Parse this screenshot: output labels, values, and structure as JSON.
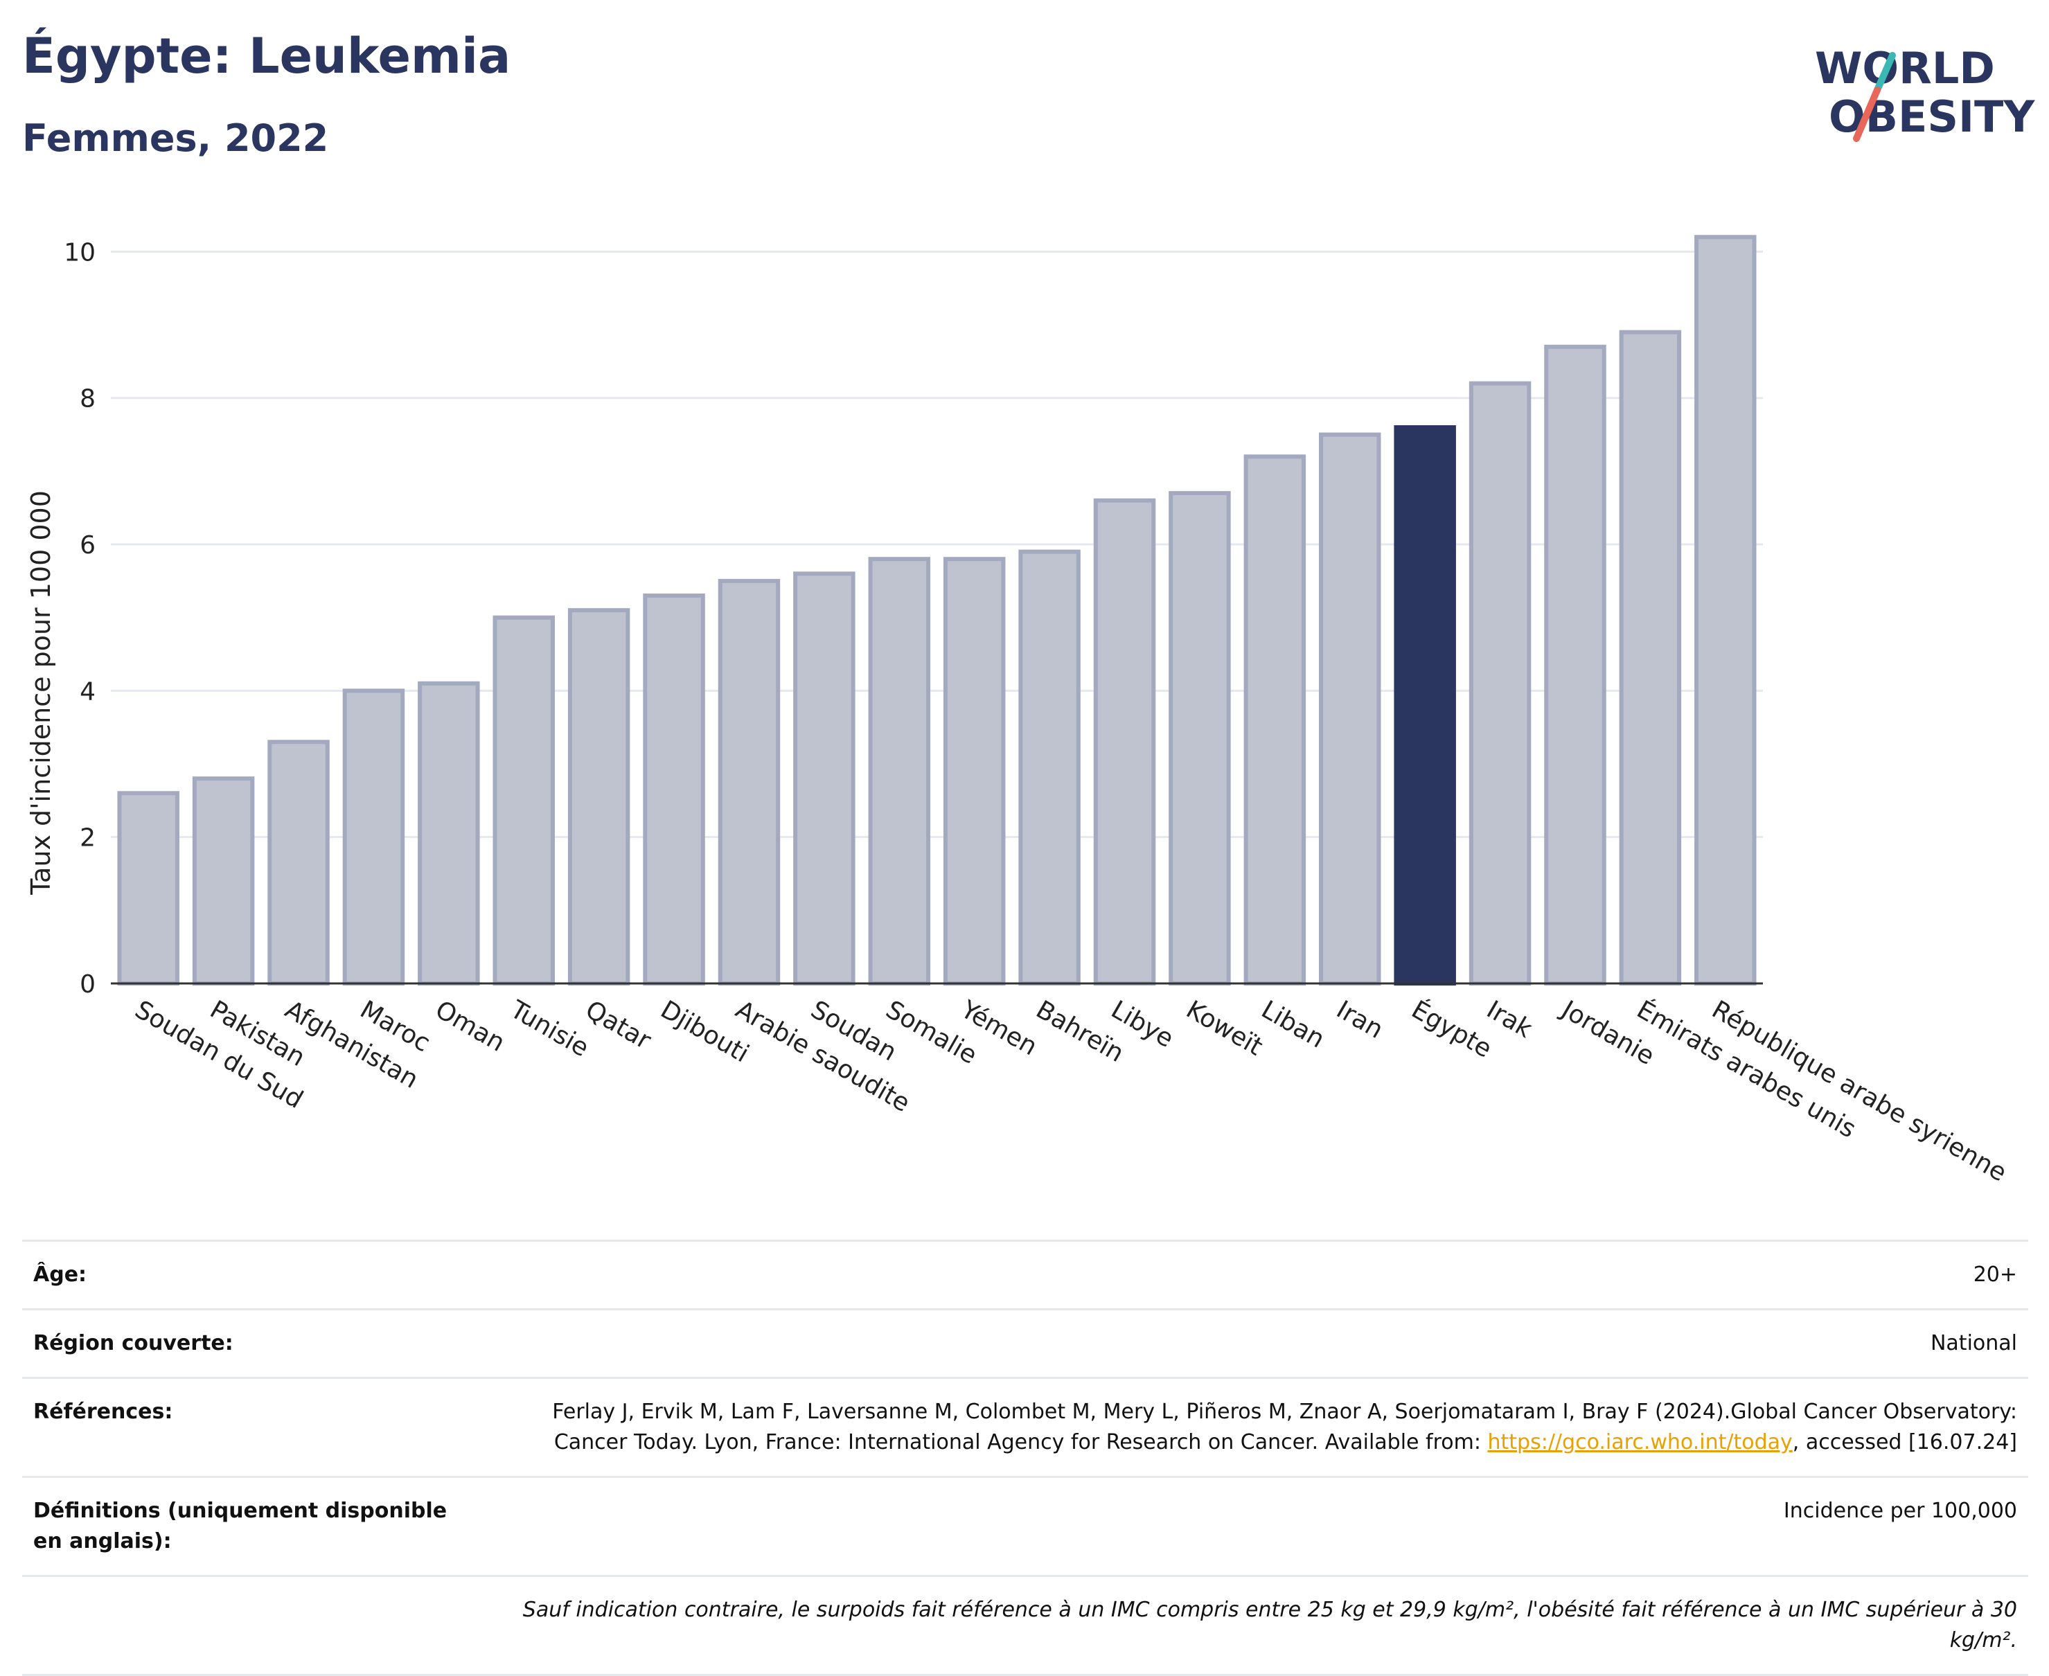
{
  "header": {
    "title": "Égypte: Leukemia",
    "subtitle": "Femmes, 2022"
  },
  "logo": {
    "line1": "WORLD",
    "line2": "OBESITY",
    "accent_teal": "#3bb8b3",
    "accent_red": "#e8675a",
    "text_color": "#2a3560"
  },
  "chart_data": {
    "type": "bar",
    "ylabel": "Taux d'incidence pour 100 000",
    "ylim": [
      0,
      10.6
    ],
    "yticks": [
      0,
      2,
      4,
      6,
      8,
      10
    ],
    "grid": true,
    "highlight": "Égypte",
    "colors": {
      "bar": "#bfc3d0",
      "bar_border": "#a3a9bf",
      "highlight": "#2a3560"
    },
    "categories": [
      "Soudan du Sud",
      "Pakistan",
      "Afghanistan",
      "Maroc",
      "Oman",
      "Tunisie",
      "Qatar",
      "Djibouti",
      "Arabie saoudite",
      "Soudan",
      "Somalie",
      "Yémen",
      "Bahreïn",
      "Libye",
      "Koweït",
      "Liban",
      "Iran",
      "Égypte",
      "Irak",
      "Jordanie",
      "Émirats arabes unis",
      "République arabe syrienne"
    ],
    "values": [
      2.6,
      2.8,
      3.3,
      4.0,
      4.1,
      5.0,
      5.1,
      5.3,
      5.5,
      5.6,
      5.8,
      5.8,
      5.9,
      6.6,
      6.7,
      7.2,
      7.5,
      7.6,
      8.2,
      8.7,
      8.9,
      10.2
    ]
  },
  "meta": {
    "age_label": "Âge:",
    "age_value": "20+",
    "region_label": "Région couverte:",
    "region_value": "National",
    "refs_label": "Références:",
    "refs_text": "Ferlay J, Ervik M, Lam F, Laversanne M, Colombet M, Mery L, Piñeros M, Znaor A, Soerjomataram I, Bray F (2024).Global Cancer Observatory: Cancer Today. Lyon, France: International Agency for Research on Cancer. Available from: ",
    "refs_link": "https://gco.iarc.who.int/today",
    "refs_tail": ", accessed [16.07.24]",
    "defs_label": "Définitions (uniquement disponible en anglais):",
    "defs_value": "Incidence per 100,000",
    "note": "Sauf indication contraire, le surpoids fait référence à un IMC compris entre 25 kg et 29,9 kg/m², l'obésité fait référence à un IMC supérieur à 30 kg/m²."
  }
}
